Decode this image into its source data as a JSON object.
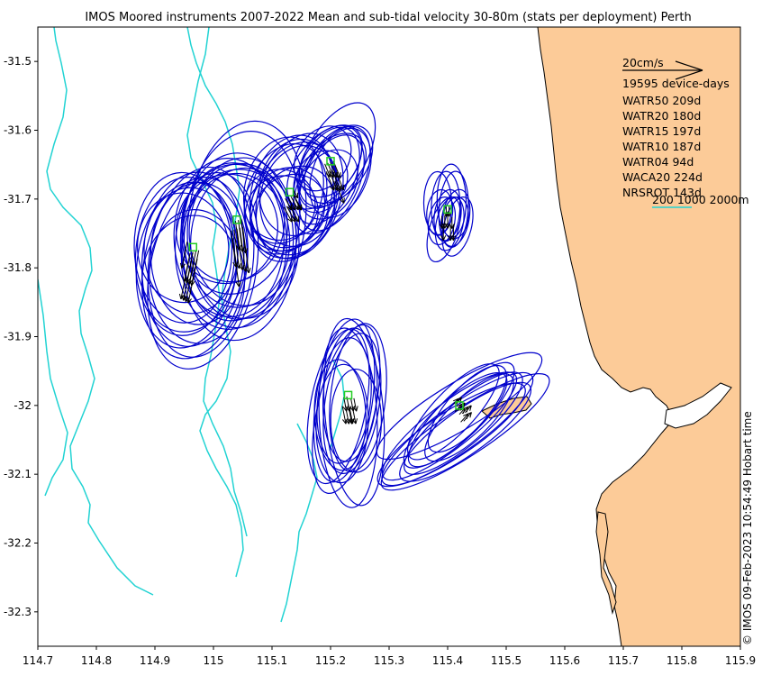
{
  "title": "IMOS Moored instruments 2007-2022 Mean and sub-tidal velocity 30-80m (stats per deployment) Perth",
  "credit": "© IMOS 09-Feb-2023 10:54:49 Hobart time",
  "map": {
    "lon_range": [
      114.7,
      115.9
    ],
    "lat_range": [
      -32.35,
      -31.45
    ],
    "x_ticks": [
      "114.7",
      "114.8",
      "114.9",
      "115",
      "115.1",
      "115.2",
      "115.3",
      "115.4",
      "115.5",
      "115.6",
      "115.7",
      "115.8",
      "115.9"
    ],
    "y_ticks": [
      "-31.5",
      "-31.6",
      "-31.7",
      "-31.8",
      "-31.9",
      "-32",
      "-32.1",
      "-32.2",
      "-32.3"
    ],
    "colors": {
      "ellipse": "#0000cc",
      "isobath": "#22d3d3",
      "land": "#fccb98",
      "station": "#22cc22",
      "arrow": "#000000"
    }
  },
  "legend": {
    "scale_label": "20cm/s",
    "total": "19595 device-days",
    "stations": [
      "WATR50 209d",
      "WATR20 180d",
      "WATR15 197d",
      "WATR10 187d",
      "WATR04 94d",
      "WACA20 224d",
      "NRSROT 143d"
    ],
    "isobath_label": "200 1000 2000m"
  },
  "stations": [
    {
      "name": "WATR50",
      "lon": 114.965,
      "lat": -31.77,
      "mean_u": -3.5,
      "mean_v": -20,
      "ellipse": {
        "a": 0.17,
        "b": 0.09,
        "angle": 95
      }
    },
    {
      "name": "WATR20",
      "lon": 115.04,
      "lat": -31.73,
      "mean_u": 2.5,
      "mean_v": -22,
      "ellipse": {
        "a": 0.17,
        "b": 0.1,
        "angle": 95
      }
    },
    {
      "name": "WATR15",
      "lon": 115.13,
      "lat": -31.69,
      "mean_u": 3.5,
      "mean_v": -7.5,
      "ellipse": {
        "a": 0.11,
        "b": 0.07,
        "angle": 110
      }
    },
    {
      "name": "WATR10",
      "lon": 115.2,
      "lat": -31.645,
      "mean_u": 3.5,
      "mean_v": -10,
      "ellipse": {
        "a": 0.1,
        "b": 0.05,
        "angle": 120
      }
    },
    {
      "name": "WATR04",
      "lon": 115.4,
      "lat": -31.715,
      "mean_u": 0,
      "mean_v": -7.5,
      "ellipse": {
        "a": 0.065,
        "b": 0.025,
        "angle": 98
      }
    },
    {
      "name": "WACA20",
      "lon": 115.23,
      "lat": -31.985,
      "mean_u": 1.5,
      "mean_v": -9,
      "ellipse": {
        "a": 0.16,
        "b": 0.05,
        "angle": 94
      }
    },
    {
      "name": "NRSROT",
      "lon": 115.42,
      "lat": -32.0,
      "mean_u": 3,
      "mean_v": 4,
      "ellipse": {
        "a": 0.17,
        "b": 0.04,
        "angle": 140
      }
    }
  ]
}
